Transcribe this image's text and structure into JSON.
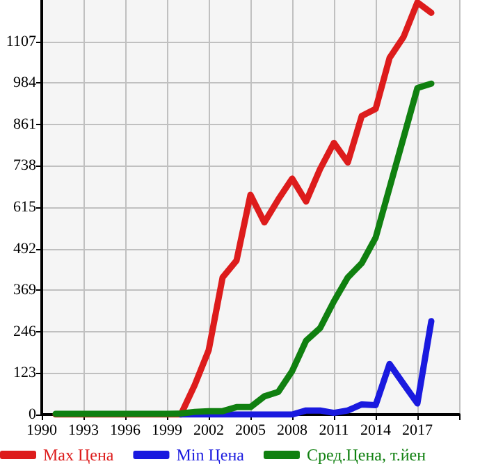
{
  "chart_data": {
    "type": "line",
    "x": [
      1991,
      1992,
      1993,
      1994,
      1995,
      1996,
      1997,
      1998,
      1999,
      2000,
      2001,
      2002,
      2003,
      2004,
      2005,
      2006,
      2007,
      2008,
      2009,
      2010,
      2011,
      2012,
      2013,
      2014,
      2015,
      2016,
      2017,
      2018
    ],
    "series": [
      {
        "name": "Max Цена",
        "color": "#dd1c1c",
        "values": [
          0,
          0,
          0,
          0,
          0,
          0,
          0,
          0,
          0,
          0,
          88,
          191,
          407,
          457,
          652,
          570,
          638,
          700,
          632,
          728,
          806,
          748,
          886,
          907,
          1058,
          1120,
          1223,
          1192
        ]
      },
      {
        "name": "Min Цена",
        "color": "#1a1adf",
        "values": [
          null,
          null,
          null,
          null,
          null,
          null,
          null,
          null,
          null,
          0,
          0,
          0,
          0,
          0,
          0,
          0,
          0,
          0,
          12,
          12,
          5,
          12,
          30,
          28,
          150,
          91,
          33,
          277
        ]
      },
      {
        "name": "Сред.Цена, т.йен",
        "color": "#108010",
        "values": [
          2,
          2,
          2,
          2,
          2,
          2,
          2,
          2,
          2,
          3,
          8,
          10,
          10,
          22,
          22,
          54,
          67,
          129,
          219,
          256,
          336,
          407,
          449,
          525,
          673,
          821,
          969,
          982
        ]
      }
    ],
    "xlim": [
      1990,
      2020
    ],
    "xticks": [
      1990,
      1993,
      1996,
      1999,
      2002,
      2005,
      2008,
      2011,
      2014,
      2017,
      {
        "value": 2020,
        "label": null
      }
    ],
    "ylim": [
      0,
      1230
    ],
    "yticks": [
      0,
      123,
      246,
      369,
      492,
      615,
      738,
      861,
      984,
      1107
    ],
    "grid": true,
    "legend": "bottom",
    "marker": "none",
    "line_style": "solid"
  }
}
